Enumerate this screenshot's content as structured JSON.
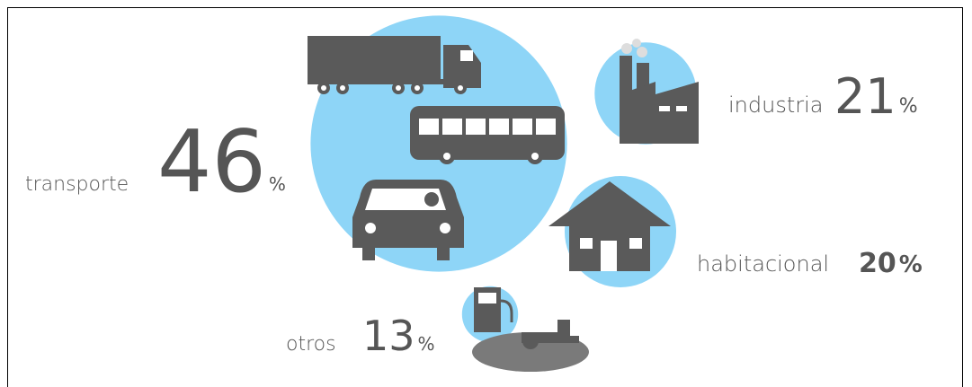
{
  "chart_data": {
    "type": "bubble",
    "categories": [
      "transporte",
      "industria",
      "habitacional",
      "otros"
    ],
    "values": [
      46,
      21,
      20,
      13
    ],
    "unit": "%",
    "color": "#8ed5f7",
    "icon_color": "#5a5a5a"
  }
}
